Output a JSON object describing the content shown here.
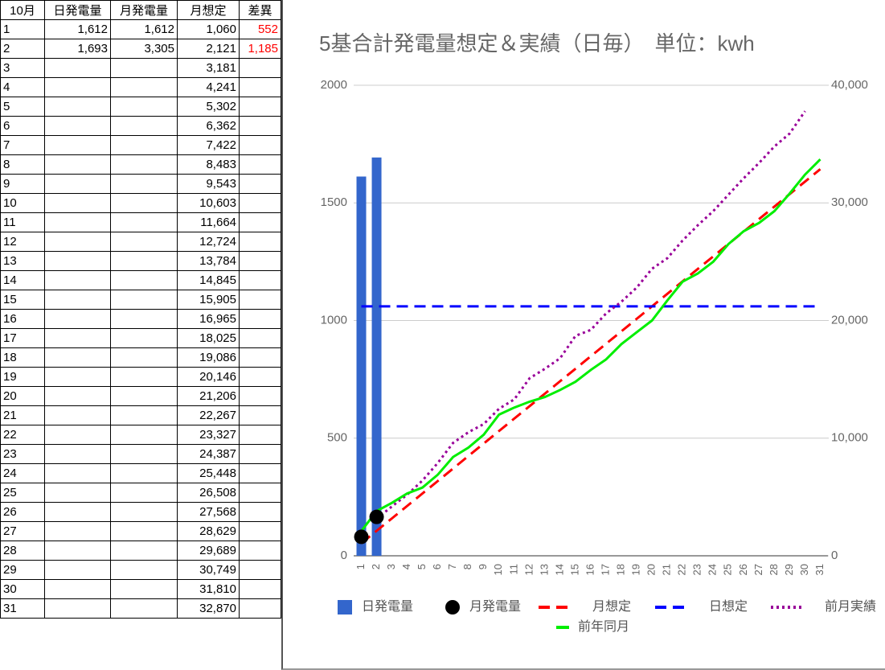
{
  "table": {
    "header": [
      "10月",
      "日発電量",
      "月発電量",
      "月想定",
      "差異"
    ],
    "rows": [
      [
        "1",
        "1,612",
        "1,612",
        "1,060",
        "552"
      ],
      [
        "2",
        "1,693",
        "3,305",
        "2,121",
        "1,185"
      ],
      [
        "3",
        null,
        null,
        "3,181",
        null
      ],
      [
        "4",
        null,
        null,
        "4,241",
        null
      ],
      [
        "5",
        null,
        null,
        "5,302",
        null
      ],
      [
        "6",
        null,
        null,
        "6,362",
        null
      ],
      [
        "7",
        null,
        null,
        "7,422",
        null
      ],
      [
        "8",
        null,
        null,
        "8,483",
        null
      ],
      [
        "9",
        null,
        null,
        "9,543",
        null
      ],
      [
        "10",
        null,
        null,
        "10,603",
        null
      ],
      [
        "11",
        null,
        null,
        "11,664",
        null
      ],
      [
        "12",
        null,
        null,
        "12,724",
        null
      ],
      [
        "13",
        null,
        null,
        "13,784",
        null
      ],
      [
        "14",
        null,
        null,
        "14,845",
        null
      ],
      [
        "15",
        null,
        null,
        "15,905",
        null
      ],
      [
        "16",
        null,
        null,
        "16,965",
        null
      ],
      [
        "17",
        null,
        null,
        "18,025",
        null
      ],
      [
        "18",
        null,
        null,
        "19,086",
        null
      ],
      [
        "19",
        null,
        null,
        "20,146",
        null
      ],
      [
        "20",
        null,
        null,
        "21,206",
        null
      ],
      [
        "21",
        null,
        null,
        "22,267",
        null
      ],
      [
        "22",
        null,
        null,
        "23,327",
        null
      ],
      [
        "23",
        null,
        null,
        "24,387",
        null
      ],
      [
        "24",
        null,
        null,
        "25,448",
        null
      ],
      [
        "25",
        null,
        null,
        "26,508",
        null
      ],
      [
        "26",
        null,
        null,
        "27,568",
        null
      ],
      [
        "27",
        null,
        null,
        "28,629",
        null
      ],
      [
        "28",
        null,
        null,
        "29,689",
        null
      ],
      [
        "29",
        null,
        null,
        "30,749",
        null
      ],
      [
        "30",
        null,
        null,
        "31,810",
        null
      ],
      [
        "31",
        null,
        null,
        "32,870",
        null
      ]
    ]
  },
  "chart_data": {
    "type": "combo",
    "title": "5基合計発電量想定＆実績（日毎）　単位：kwh",
    "categories": [
      "1",
      "2",
      "3",
      "4",
      "5",
      "6",
      "7",
      "8",
      "9",
      "10",
      "11",
      "12",
      "13",
      "14",
      "15",
      "16",
      "17",
      "18",
      "19",
      "20",
      "21",
      "22",
      "23",
      "24",
      "25",
      "26",
      "27",
      "28",
      "29",
      "30",
      "31"
    ],
    "ylim": [
      0,
      2000
    ],
    "yticks": [
      0,
      500,
      1000,
      1500,
      2000
    ],
    "y2lim": [
      0,
      40000
    ],
    "y2ticks": [
      0,
      {
        "value": 10000,
        "label": "10,000"
      },
      {
        "value": 20000,
        "label": "20,000"
      },
      {
        "value": 30000,
        "label": "30,000"
      },
      {
        "value": 40000,
        "label": "40,000"
      }
    ],
    "grid": true,
    "legend": "bottom",
    "series": [
      {
        "name": "日発電量",
        "type": "bar",
        "color": "#3366cc",
        "values": [
          1612,
          1693,
          null,
          null,
          null,
          null,
          null,
          null,
          null,
          null,
          null,
          null,
          null,
          null,
          null,
          null,
          null,
          null,
          null,
          null,
          null,
          null,
          null,
          null,
          null,
          null,
          null,
          null,
          null,
          null,
          null
        ]
      },
      {
        "name": "月発電量",
        "type": "scatter",
        "axis": "y2",
        "color": "#000000",
        "values": [
          1612,
          3305,
          null,
          null,
          null,
          null,
          null,
          null,
          null,
          null,
          null,
          null,
          null,
          null,
          null,
          null,
          null,
          null,
          null,
          null,
          null,
          null,
          null,
          null,
          null,
          null,
          null,
          null,
          null,
          null,
          null
        ]
      },
      {
        "name": "月想定",
        "type": "line",
        "dash": "dashed",
        "axis": "y2",
        "color": "#ff0000",
        "values": [
          1060,
          2121,
          3181,
          4241,
          5302,
          6362,
          7422,
          8483,
          9543,
          10603,
          11664,
          12724,
          13784,
          14845,
          15905,
          16965,
          18025,
          19086,
          20146,
          21206,
          22267,
          23327,
          24387,
          25448,
          26508,
          27568,
          28629,
          29689,
          30749,
          31810,
          32870
        ]
      },
      {
        "name": "日想定",
        "type": "line",
        "dash": "dashed",
        "color": "#0000ff",
        "values": [
          1060,
          1060,
          1060,
          1060,
          1060,
          1060,
          1060,
          1060,
          1060,
          1060,
          1060,
          1060,
          1060,
          1060,
          1060,
          1060,
          1060,
          1060,
          1060,
          1060,
          1060,
          1060,
          1060,
          1060,
          1060,
          1060,
          1060,
          1060,
          1060,
          1060,
          1060
        ]
      },
      {
        "name": "前月実績",
        "type": "line",
        "dash": "dotted",
        "axis": "y2",
        "color": "#990099",
        "values": [
          null,
          3150,
          4200,
          5200,
          6400,
          7900,
          9600,
          10500,
          11200,
          12500,
          13300,
          15100,
          15900,
          16800,
          18700,
          19200,
          20600,
          21600,
          22800,
          24400,
          25300,
          26800,
          28100,
          29300,
          30700,
          32100,
          33400,
          34800,
          35900,
          37800,
          null
        ]
      },
      {
        "name": "前年同月",
        "type": "line",
        "dash": "solid",
        "axis": "y2",
        "color": "#00ee00",
        "values": [
          2100,
          3800,
          4500,
          5300,
          5800,
          6900,
          8400,
          9200,
          10300,
          12000,
          12600,
          13100,
          13500,
          14100,
          14800,
          15800,
          16700,
          18000,
          19000,
          20000,
          21700,
          23300,
          24000,
          25000,
          26500,
          27600,
          28300,
          29300,
          30800,
          32400,
          33700
        ]
      }
    ]
  }
}
